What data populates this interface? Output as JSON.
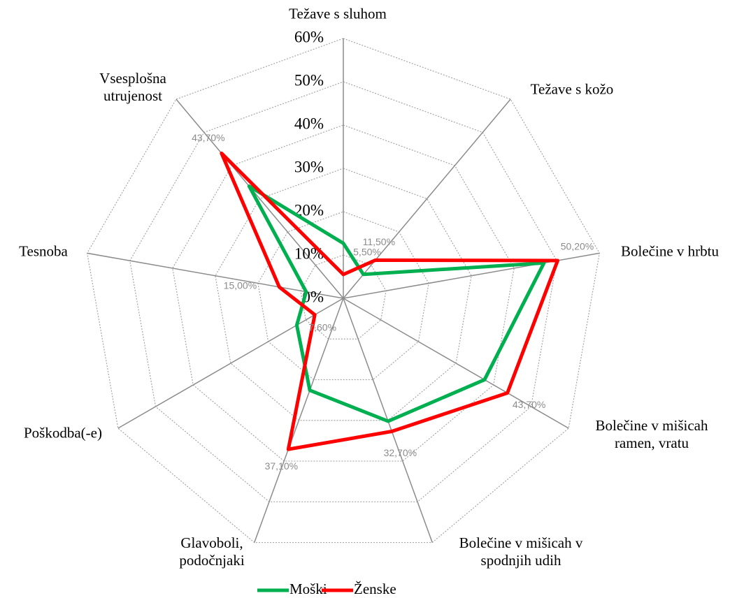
{
  "chart_data": {
    "type": "radar",
    "categories": [
      "Težave s sluhom",
      "Težave s kožo",
      "Bolečine v hrbtu",
      "Bolečine v mišicah ramen, vratu",
      "Bolečine v mišicah v spodnjih udih",
      "Glavoboli, podočnjaki",
      "Poškodba(-e)",
      "Tesnoba",
      "Vsesplošna utrujenost"
    ],
    "series": [
      {
        "name": "Moški",
        "color": "#00b050",
        "values": [
          12.7,
          7.2,
          47,
          37.6,
          30.2,
          22.6,
          12.4,
          8.7,
          33.8
        ]
      },
      {
        "name": "Ženske",
        "color": "#ff0000",
        "values": [
          5.5,
          11.5,
          50.2,
          43.7,
          32.7,
          37.1,
          7.6,
          15.0,
          43.7
        ],
        "value_labels": [
          "5,50%",
          "11,50%",
          "50,20%",
          "43,70%",
          "32,70%",
          "37,10%",
          "7,60%",
          "15,00%",
          "43,70%"
        ]
      }
    ],
    "ylim": [
      0,
      60
    ],
    "yticks": [
      {
        "value": 0,
        "label": "0%"
      },
      {
        "value": 10,
        "label": "10%"
      },
      {
        "value": 20,
        "label": "20%"
      },
      {
        "value": 30,
        "label": "30%"
      },
      {
        "value": 40,
        "label": "40%"
      },
      {
        "value": 50,
        "label": "50%"
      },
      {
        "value": 60,
        "label": "60%"
      }
    ],
    "grid": true,
    "legend": "bottom"
  }
}
